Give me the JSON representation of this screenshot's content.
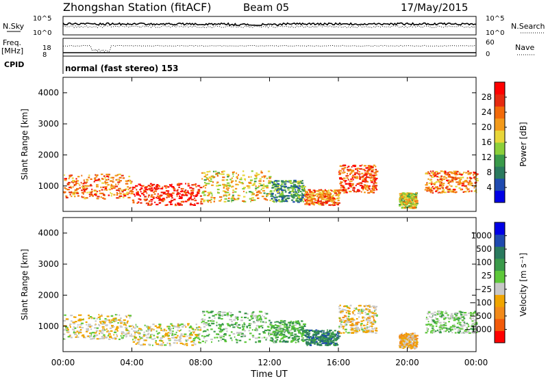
{
  "header": {
    "station": "Zhongshan Station (fitACF)",
    "beam": "Beam 05",
    "date": "17/May/2015"
  },
  "top_panels": {
    "nsky_label": "N.Sky",
    "nsearch_label": "N.Search",
    "freq_label": "Freq.",
    "freq_unit": "[MHz]",
    "nave_label": "Nave",
    "cpid_label": "CPID",
    "cpid_text": "normal (fast stereo) 153",
    "noise_ticks": [
      "10^5",
      "10^0"
    ],
    "freq_ticks": [
      "18",
      "8"
    ],
    "nave_ticks": [
      "60",
      "0"
    ]
  },
  "chart_data": [
    {
      "type": "heatmap",
      "quantity": "Power",
      "colorbar_label": "Power [dB]",
      "colorbar_ticks": [
        "28",
        "24",
        "20",
        "16",
        "12",
        "8",
        "4"
      ],
      "colorbar_scale": [
        0,
        30
      ],
      "colors": [
        "#0000e6",
        "#1f4ab0",
        "#2a7a5e",
        "#3a9a4a",
        "#8ccf3a",
        "#e8d63a",
        "#f39a1a",
        "#f26a0a",
        "#e62a10",
        "#ff0000"
      ],
      "ylabel": "Slant Range [km]",
      "yticks": [
        "4000",
        "3000",
        "2000",
        "1000"
      ],
      "ylim": [
        180,
        4500
      ],
      "xlim": [
        0,
        24
      ],
      "scatter_regions": [
        {
          "t": [
            0,
            4
          ],
          "r": [
            600,
            1400
          ],
          "value": 22
        },
        {
          "t": [
            4,
            8
          ],
          "r": [
            400,
            1100
          ],
          "value": 27
        },
        {
          "t": [
            8,
            12
          ],
          "r": [
            500,
            1500
          ],
          "value": 17
        },
        {
          "t": [
            12,
            14
          ],
          "r": [
            500,
            1200
          ],
          "value": 10
        },
        {
          "t": [
            14,
            16
          ],
          "r": [
            400,
            900
          ],
          "value": 22
        },
        {
          "t": [
            16,
            18.2
          ],
          "r": [
            800,
            1700
          ],
          "value": 24
        },
        {
          "t": [
            19.5,
            20.5
          ],
          "r": [
            300,
            800
          ],
          "value": 16
        },
        {
          "t": [
            21,
            24
          ],
          "r": [
            800,
            1500
          ],
          "value": 22
        }
      ]
    },
    {
      "type": "heatmap",
      "quantity": "Velocity",
      "colorbar_label": "Velocity [m s⁻¹]",
      "colorbar_ticks": [
        "1000",
        "500",
        "100",
        "25",
        "−25",
        "−100",
        "−500",
        "−1000"
      ],
      "colorbar_scale": [
        -1000,
        1000
      ],
      "colors": [
        "#ff0000",
        "#f25a0a",
        "#f28a1a",
        "#f0a500",
        "#c8c8c8",
        "#5ec83a",
        "#3a9a4a",
        "#2a7a5e",
        "#1f4ab0",
        "#0000e6"
      ],
      "ylabel": "Slant Range [km]",
      "yticks": [
        "4000",
        "3000",
        "2000",
        "1000"
      ],
      "ylim": [
        180,
        4500
      ],
      "xlim": [
        0,
        24
      ],
      "xlabel": "Time UT",
      "xticks": [
        "00:00",
        "04:00",
        "08:00",
        "12:00",
        "16:00",
        "20:00",
        "00:00"
      ],
      "scatter_regions": [
        {
          "t": [
            0,
            4
          ],
          "r": [
            600,
            1400
          ],
          "value": -150
        },
        {
          "t": [
            4,
            8
          ],
          "r": [
            400,
            1100
          ],
          "value": -120
        },
        {
          "t": [
            8,
            12
          ],
          "r": [
            500,
            1500
          ],
          "value": 120
        },
        {
          "t": [
            12,
            14
          ],
          "r": [
            500,
            1200
          ],
          "value": 200
        },
        {
          "t": [
            14,
            16
          ],
          "r": [
            400,
            900
          ],
          "value": 450
        },
        {
          "t": [
            16,
            18.2
          ],
          "r": [
            800,
            1700
          ],
          "value": -200
        },
        {
          "t": [
            19.5,
            20.5
          ],
          "r": [
            300,
            800
          ],
          "value": -300
        },
        {
          "t": [
            21,
            24
          ],
          "r": [
            800,
            1500
          ],
          "value": 80
        }
      ]
    }
  ]
}
